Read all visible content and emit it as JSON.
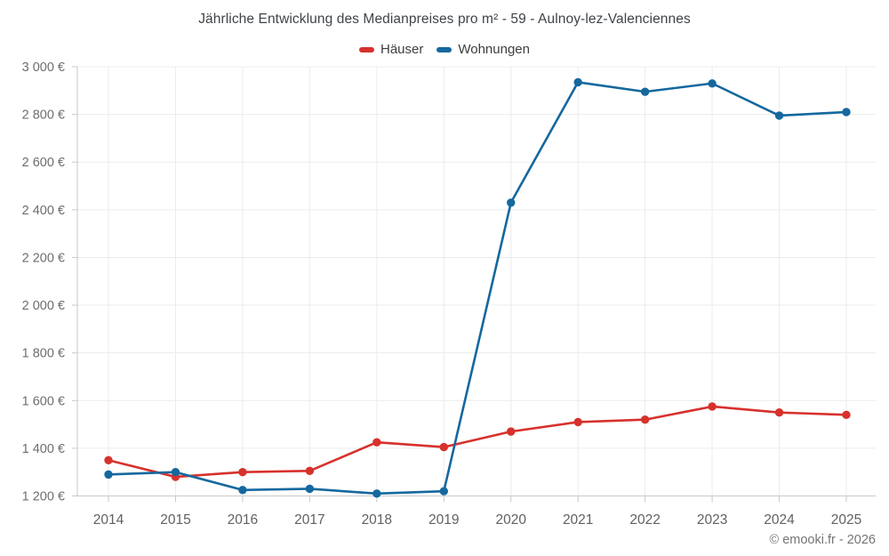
{
  "page": {
    "credit": "© emooki.fr - 2026"
  },
  "colors": {
    "haeuser": "#d7312c",
    "wohnungen": "#15689e",
    "grid": "#ececec",
    "axis": "#c9c9c9",
    "title_text": "#3f4448",
    "y_tick_text": "#6e6e6e",
    "x_tick_text": "#616161",
    "credit_text": "#757575"
  },
  "chart_data": {
    "type": "line",
    "title": "Jährliche Entwicklung des Medianpreises pro m² - 59 - Aulnoy-lez-Valenciennes",
    "categories": [
      "2014",
      "2015",
      "2016",
      "2017",
      "2018",
      "2019",
      "2020",
      "2021",
      "2022",
      "2023",
      "2024",
      "2025"
    ],
    "series": [
      {
        "name": "Häuser",
        "color": "#d7312c",
        "values": [
          1350,
          1280,
          1300,
          1305,
          1425,
          1405,
          1470,
          1510,
          1520,
          1575,
          1550,
          1540
        ]
      },
      {
        "name": "Wohnungen",
        "color": "#15689e",
        "values": [
          1290,
          1300,
          1225,
          1230,
          1210,
          1220,
          2430,
          2935,
          2895,
          2930,
          2795,
          2810
        ]
      }
    ],
    "xlabel": "",
    "ylabel": "",
    "y_axis": {
      "min": 1200,
      "max": 3000,
      "step": 200,
      "tick_labels": [
        "1 200 €",
        "1 400 €",
        "1 600 €",
        "1 800 €",
        "2 000 €",
        "2 200 €",
        "2 400 €",
        "2 600 €",
        "2 800 €",
        "3 000 €"
      ]
    },
    "legend_position": "top",
    "grid": true,
    "marker": "circle"
  }
}
